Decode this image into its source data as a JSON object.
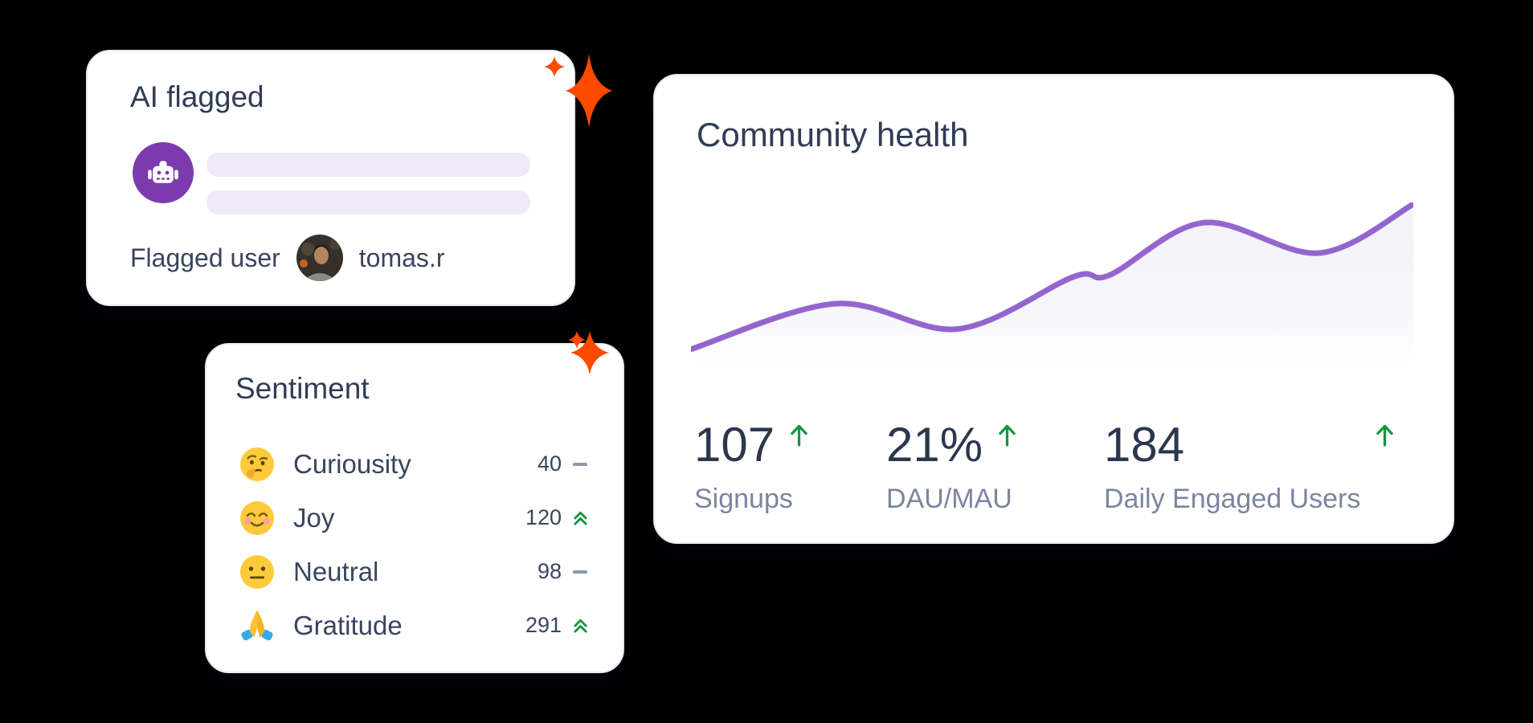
{
  "canvas": {
    "background": "#000000"
  },
  "colors": {
    "accent_purple": "#7c3aae",
    "chart_purple": "#9565cf",
    "sparkle_orange": "#ff4a00",
    "positive_green": "#169443",
    "title_text": "#303c54",
    "muted_label": "#7a86a0",
    "placeholder_bar": "#efeaf8",
    "card_border": "#e7ebf4"
  },
  "icons": {
    "robot": "robot-icon",
    "sparkle": "sparkle-icon",
    "trend_up": "arrow-up-icon",
    "trend_flat": "dash-icon",
    "trend_up_double": "double-chevron-up-icon"
  },
  "ai_flagged_card": {
    "title": "AI flagged",
    "flagged_label": "Flagged user",
    "flagged_username": "tomas.r"
  },
  "sentiment_card": {
    "title": "Sentiment",
    "rows": [
      {
        "emoji": "thinking-face-emoji",
        "label": "Curiousity",
        "value": "40",
        "trend": "flat"
      },
      {
        "emoji": "smiling-face-emoji",
        "label": "Joy",
        "value": "120",
        "trend": "up"
      },
      {
        "emoji": "neutral-face-emoji",
        "label": "Neutral",
        "value": "98",
        "trend": "flat"
      },
      {
        "emoji": "praying-hands-emoji",
        "label": "Gratitude",
        "value": "291",
        "trend": "up"
      }
    ]
  },
  "community_card": {
    "title": "Community health",
    "stats": [
      {
        "value": "107",
        "label": "Signups",
        "trend": "up"
      },
      {
        "value": "21%",
        "label": "DAU/MAU",
        "trend": "up"
      },
      {
        "value": "184",
        "label": "Daily Engaged Users",
        "trend": "up"
      }
    ],
    "chart_data": {
      "type": "area",
      "title": "Community health",
      "x": [
        0,
        0.2,
        0.37,
        0.53,
        0.58,
        0.71,
        0.87,
        1
      ],
      "values": [
        13,
        40,
        25,
        56,
        57,
        88,
        70,
        99
      ],
      "ylim": [
        0,
        100
      ],
      "grid": false,
      "line_color": "#9565cf",
      "fill_color": "#f3f1f9"
    }
  }
}
